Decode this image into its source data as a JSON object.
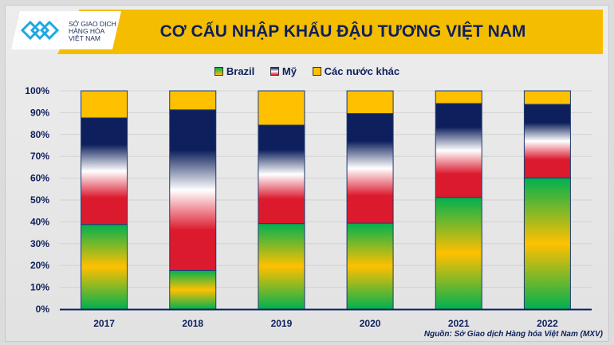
{
  "header": {
    "title": "CƠ CẤU NHẬP KHẨU ĐẬU TƯƠNG VIỆT NAM",
    "logo_text": "SỞ GIAO DỊCH HÀNG HÓA VIỆT NAM"
  },
  "source": "Nguồn: Sở Giao dịch Hàng hóa Việt Nam (MXV)",
  "chart_data": {
    "type": "bar",
    "stacked": true,
    "title": "CƠ CẤU NHẬP KHẨU ĐẬU TƯƠNG VIỆT NAM",
    "categories": [
      "2017",
      "2018",
      "2019",
      "2020",
      "2021",
      "2022"
    ],
    "series": [
      {
        "name": "Brazil",
        "values": [
          38.8,
          17.7,
          39.2,
          39.4,
          51.2,
          60.1
        ],
        "color": "#00b050"
      },
      {
        "name": "Mỹ",
        "values": [
          48.8,
          73.6,
          45.1,
          50.2,
          43.0,
          33.7
        ],
        "color": "#0d1f5c"
      },
      {
        "name": "Các nước khác",
        "values": [
          12.4,
          8.7,
          15.7,
          10.4,
          5.8,
          6.2
        ],
        "color": "#ffc000"
      }
    ],
    "ylim": [
      0,
      100
    ],
    "yticks": [
      "0%",
      "10%",
      "20%",
      "30%",
      "40%",
      "50%",
      "60%",
      "70%",
      "80%",
      "90%",
      "100%"
    ],
    "legend": "top",
    "grid": true
  }
}
